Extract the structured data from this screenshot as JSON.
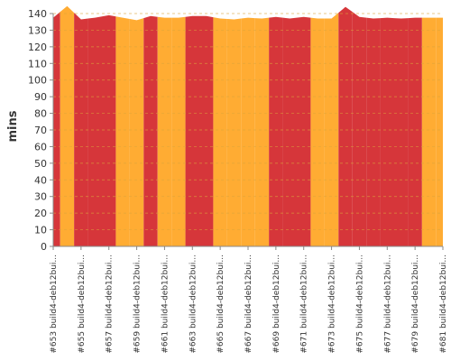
{
  "chart_data": {
    "type": "area",
    "title": "",
    "xlabel": "",
    "ylabel": "mins",
    "ylim": [
      0,
      140
    ],
    "yticks": [
      0,
      10,
      20,
      30,
      40,
      50,
      60,
      70,
      80,
      90,
      100,
      110,
      120,
      130,
      140
    ],
    "grid": true,
    "x": [
      653,
      654,
      655,
      656,
      657,
      658,
      659,
      660,
      661,
      662,
      663,
      664,
      665,
      666,
      667,
      668,
      669,
      670,
      671,
      672,
      673,
      674,
      675,
      676,
      677,
      678,
      679,
      680,
      681
    ],
    "xtick_labels": [
      "#653 build4-deb12bui...",
      "#655 build4-deb12bui...",
      "#657 build4-deb12bui...",
      "#659 build4-deb12bui...",
      "#661 build4-deb12bui...",
      "#663 build4-deb12bui...",
      "#665 build4-deb12bui...",
      "#667 build4-deb12bui...",
      "#669 build4-deb12bui...",
      "#671 build4-deb12bui...",
      "#673 build4-deb12bui...",
      "#675 build4-deb12bui...",
      "#677 build4-deb12bui...",
      "#679 build4-deb12bui...",
      "#681 build4-deb12bui..."
    ],
    "values": [
      137.5,
      144.5,
      136.5,
      137.5,
      139,
      137.5,
      136,
      138.5,
      137.5,
      137.5,
      138.5,
      138.5,
      137,
      136.5,
      137.5,
      137,
      138,
      137,
      138,
      137,
      137,
      144,
      138,
      137,
      137.5,
      137,
      137.5,
      137.5,
      137.5
    ],
    "status": [
      "failed",
      "unstable",
      "failed",
      "failed",
      "failed",
      "unstable",
      "unstable",
      "failed",
      "unstable",
      "unstable",
      "failed",
      "failed",
      "unstable",
      "unstable",
      "unstable",
      "unstable",
      "failed",
      "failed",
      "failed",
      "unstable",
      "unstable",
      "failed",
      "failed",
      "failed",
      "failed",
      "failed",
      "failed",
      "unstable",
      "unstable"
    ],
    "colors": {
      "failed": "#d6363a",
      "unstable": "#ffac33",
      "grid": "#dca53a",
      "axis": "#888888"
    }
  }
}
